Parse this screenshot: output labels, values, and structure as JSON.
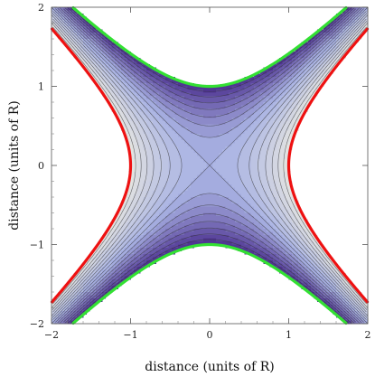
{
  "chart_data": {
    "type": "contour",
    "xlabel": "distance (units of R)",
    "ylabel": "distance (units of R)",
    "xlim": [
      -2,
      2
    ],
    "ylim": [
      -2,
      2
    ],
    "xticks": [
      {
        "value": -2,
        "label": "−2"
      },
      {
        "value": -1,
        "label": "−1"
      },
      {
        "value": 0,
        "label": "0"
      },
      {
        "value": 1,
        "label": "1"
      },
      {
        "value": 2,
        "label": "2"
      }
    ],
    "yticks": [
      {
        "value": -2,
        "label": "−2"
      },
      {
        "value": -1,
        "label": "−1"
      },
      {
        "value": 0,
        "label": "0"
      },
      {
        "value": 1,
        "label": "1"
      },
      {
        "value": 2,
        "label": "2"
      }
    ],
    "field": "x^2 - y^2",
    "field_range": [
      -1,
      1
    ],
    "contour_levels": [
      -1,
      -0.875,
      -0.75,
      -0.625,
      -0.5,
      -0.375,
      -0.25,
      -0.125,
      0,
      0.125,
      0.25,
      0.375,
      0.5,
      0.625,
      0.75,
      0.875,
      1
    ],
    "band_colors": {
      "low": "#4a2e8e",
      "mid": "#aab4e4",
      "high": "#e6e6e1"
    },
    "highlighted_curves": [
      {
        "equation": "x^2 - y^2 = 1",
        "color": "#ee1111"
      },
      {
        "equation": "y^2 - x^2 = 1",
        "color": "#33e033"
      }
    ],
    "grid": false
  }
}
